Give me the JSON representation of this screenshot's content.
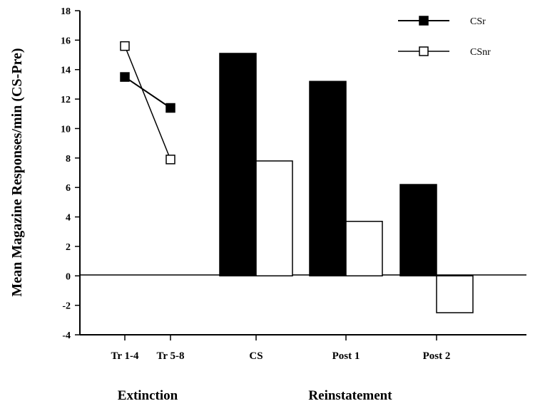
{
  "chart_data": {
    "type": "bar",
    "ylabel": "Mean Magazine Responses/min (CS-Pre)",
    "ylim": [
      -4,
      18
    ],
    "yticks": [
      -4,
      -2,
      0,
      2,
      4,
      6,
      8,
      10,
      12,
      14,
      16,
      18
    ],
    "legend_position": "top-right",
    "series_colors": {
      "CSr": "#000000",
      "CSnr": "#ffffff"
    },
    "legend": [
      "CSr",
      "CSnr"
    ],
    "groups": [
      {
        "label": "Extinction",
        "categories": [
          "Tr 1-4",
          "Tr 5-8"
        ],
        "type": "line"
      },
      {
        "label": "Reinstatement",
        "categories": [
          "CS",
          "Post 1",
          "Post 2"
        ],
        "type": "bar"
      }
    ],
    "extinction": {
      "type": "line",
      "categories": [
        "Tr 1-4",
        "Tr 5-8"
      ],
      "series": [
        {
          "name": "CSr",
          "values": [
            13.5,
            11.4
          ]
        },
        {
          "name": "CSnr",
          "values": [
            15.6,
            7.9
          ]
        }
      ]
    },
    "reinstatement": {
      "type": "bar",
      "categories": [
        "CS",
        "Post 1",
        "Post 2"
      ],
      "series": [
        {
          "name": "CSr",
          "values": [
            15.1,
            13.2,
            6.2
          ]
        },
        {
          "name": "CSnr",
          "values": [
            7.8,
            3.7,
            -2.5
          ]
        }
      ]
    }
  }
}
